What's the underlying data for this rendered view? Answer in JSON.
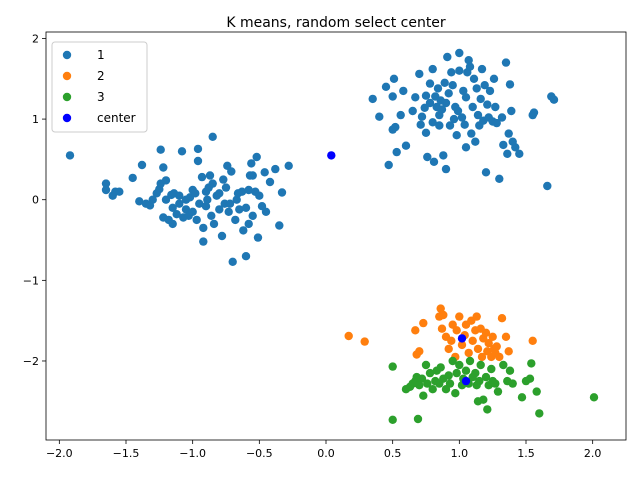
{
  "chart_data": {
    "type": "scatter",
    "title": "K means, random select center",
    "xlabel": "",
    "ylabel": "",
    "xlim": [
      -2.1,
      2.25
    ],
    "ylim": [
      -2.98,
      2.08
    ],
    "xticks": [
      -2.0,
      -1.5,
      -1.0,
      -0.5,
      0.0,
      0.5,
      1.0,
      1.5,
      2.0
    ],
    "yticks": [
      -2,
      -1,
      0,
      1,
      2
    ],
    "xtick_labels": [
      "−2.0",
      "−1.5",
      "−1.0",
      "−0.5",
      "0.0",
      "0.5",
      "1.0",
      "1.5",
      "2.0"
    ],
    "ytick_labels": [
      "−2",
      "−1",
      "0",
      "1",
      "2"
    ],
    "grid": false,
    "legend_position": "top-left",
    "series": [
      {
        "name": "1",
        "color": "#1f77b4",
        "points": [
          [
            -1.92,
            0.55
          ],
          [
            -1.65,
            0.2
          ],
          [
            -1.65,
            0.12
          ],
          [
            -1.6,
            0.05
          ],
          [
            -1.58,
            0.1
          ],
          [
            -1.55,
            0.1
          ],
          [
            -1.45,
            0.27
          ],
          [
            -1.4,
            -0.02
          ],
          [
            -1.38,
            0.43
          ],
          [
            -1.35,
            -0.05
          ],
          [
            -1.32,
            -0.07
          ],
          [
            -1.3,
            0.0
          ],
          [
            -1.27,
            0.08
          ],
          [
            -1.25,
            0.13
          ],
          [
            -1.24,
            0.2
          ],
          [
            -1.24,
            0.62
          ],
          [
            -1.22,
            -0.22
          ],
          [
            -1.22,
            0.4
          ],
          [
            -1.2,
            0.0
          ],
          [
            -1.2,
            0.24
          ],
          [
            -1.18,
            -0.25
          ],
          [
            -1.16,
            0.06
          ],
          [
            -1.15,
            -0.1
          ],
          [
            -1.15,
            -0.3
          ],
          [
            -1.14,
            0.08
          ],
          [
            -1.12,
            -0.18
          ],
          [
            -1.1,
            -0.05
          ],
          [
            -1.1,
            0.05
          ],
          [
            -1.08,
            0.6
          ],
          [
            -1.07,
            -0.22
          ],
          [
            -1.05,
            0.0
          ],
          [
            -1.05,
            -0.12
          ],
          [
            -1.03,
            -0.2
          ],
          [
            -1.02,
            0.03
          ],
          [
            -1.0,
            -0.15
          ],
          [
            -1.0,
            0.12
          ],
          [
            -0.98,
            0.08
          ],
          [
            -0.97,
            -0.25
          ],
          [
            -0.96,
            0.48
          ],
          [
            -0.96,
            0.63
          ],
          [
            -0.95,
            -0.05
          ],
          [
            -0.93,
            0.28
          ],
          [
            -0.92,
            -0.35
          ],
          [
            -0.92,
            -0.52
          ],
          [
            -0.9,
            0.1
          ],
          [
            -0.9,
            -0.08
          ],
          [
            -0.89,
            0.0
          ],
          [
            -0.88,
            0.15
          ],
          [
            -0.87,
            0.3
          ],
          [
            -0.86,
            -0.2
          ],
          [
            -0.85,
            0.78
          ],
          [
            -0.85,
            0.2
          ],
          [
            -0.84,
            -0.3
          ],
          [
            -0.82,
            0.05
          ],
          [
            -0.8,
            -0.12
          ],
          [
            -0.8,
            0.08
          ],
          [
            -0.78,
            -0.45
          ],
          [
            -0.77,
            0.25
          ],
          [
            -0.76,
            -0.05
          ],
          [
            -0.75,
            0.15
          ],
          [
            -0.74,
            0.42
          ],
          [
            -0.73,
            -0.15
          ],
          [
            -0.72,
            -0.05
          ],
          [
            -0.71,
            0.35
          ],
          [
            -0.7,
            -0.77
          ],
          [
            -0.68,
            -0.25
          ],
          [
            -0.67,
            0.0
          ],
          [
            -0.66,
            0.08
          ],
          [
            -0.65,
            -0.12
          ],
          [
            -0.63,
            0.1
          ],
          [
            -0.62,
            -0.38
          ],
          [
            -0.6,
            -0.7
          ],
          [
            -0.6,
            -0.1
          ],
          [
            -0.58,
            0.12
          ],
          [
            -0.58,
            -0.3
          ],
          [
            -0.57,
            0.3
          ],
          [
            -0.56,
            0.45
          ],
          [
            -0.55,
            0.3
          ],
          [
            -0.55,
            -0.2
          ],
          [
            -0.53,
            0.1
          ],
          [
            -0.52,
            0.53
          ],
          [
            -0.51,
            -0.47
          ],
          [
            -0.5,
            0.05
          ],
          [
            -0.48,
            -0.08
          ],
          [
            -0.46,
            0.34
          ],
          [
            -0.45,
            -0.15
          ],
          [
            -0.42,
            0.22
          ],
          [
            -0.38,
            0.38
          ],
          [
            -0.35,
            -0.32
          ],
          [
            -0.33,
            0.09
          ],
          [
            -0.28,
            0.42
          ],
          [
            0.35,
            1.25
          ],
          [
            0.4,
            1.03
          ],
          [
            0.45,
            1.4
          ],
          [
            0.47,
            0.43
          ],
          [
            0.5,
            0.87
          ],
          [
            0.5,
            1.28
          ],
          [
            0.51,
            1.5
          ],
          [
            0.52,
            0.9
          ],
          [
            0.53,
            0.59
          ],
          [
            0.56,
            1.05
          ],
          [
            0.58,
            1.35
          ],
          [
            0.6,
            0.67
          ],
          [
            0.65,
            1.1
          ],
          [
            0.67,
            1.27
          ],
          [
            0.7,
            1.56
          ],
          [
            0.71,
            0.93
          ],
          [
            0.72,
            1.03
          ],
          [
            0.74,
            1.14
          ],
          [
            0.75,
            0.83
          ],
          [
            0.75,
            1.29
          ],
          [
            0.76,
            0.53
          ],
          [
            0.78,
            1.2
          ],
          [
            0.78,
            1.44
          ],
          [
            0.8,
            0.96
          ],
          [
            0.8,
            1.62
          ],
          [
            0.81,
            0.47
          ],
          [
            0.82,
            1.28
          ],
          [
            0.83,
            1.15
          ],
          [
            0.84,
            1.38
          ],
          [
            0.85,
            1.05
          ],
          [
            0.85,
            0.92
          ],
          [
            0.86,
            1.23
          ],
          [
            0.87,
            1.12
          ],
          [
            0.88,
            0.55
          ],
          [
            0.89,
            1.45
          ],
          [
            0.9,
            1.2
          ],
          [
            0.9,
            0.38
          ],
          [
            0.91,
            1.77
          ],
          [
            0.92,
            1.32
          ],
          [
            0.93,
            0.92
          ],
          [
            0.94,
            1.58
          ],
          [
            0.95,
            1.42
          ],
          [
            0.96,
            1.0
          ],
          [
            0.97,
            1.15
          ],
          [
            0.98,
            0.8
          ],
          [
            0.99,
            1.1
          ],
          [
            1.0,
            1.82
          ],
          [
            1.0,
            1.6
          ],
          [
            1.02,
            1.02
          ],
          [
            1.03,
            1.35
          ],
          [
            1.04,
            0.93
          ],
          [
            1.05,
            1.27
          ],
          [
            1.05,
            0.65
          ],
          [
            1.06,
            1.58
          ],
          [
            1.07,
            1.73
          ],
          [
            1.08,
            1.65
          ],
          [
            1.09,
            0.82
          ],
          [
            1.1,
            1.15
          ],
          [
            1.11,
            1.5
          ],
          [
            1.12,
            0.72
          ],
          [
            1.13,
            1.38
          ],
          [
            1.14,
            1.05
          ],
          [
            1.15,
            0.92
          ],
          [
            1.16,
            1.25
          ],
          [
            1.17,
            1.62
          ],
          [
            1.18,
            0.98
          ],
          [
            1.19,
            1.42
          ],
          [
            1.2,
            0.34
          ],
          [
            1.21,
            1.18
          ],
          [
            1.22,
            1.02
          ],
          [
            1.23,
            1.35
          ],
          [
            1.25,
            0.97
          ],
          [
            1.26,
            1.5
          ],
          [
            1.27,
            1.15
          ],
          [
            1.28,
            0.95
          ],
          [
            1.3,
            0.26
          ],
          [
            1.32,
            1.02
          ],
          [
            1.33,
            0.68
          ],
          [
            1.35,
            1.7
          ],
          [
            1.36,
            0.57
          ],
          [
            1.37,
            0.82
          ],
          [
            1.38,
            1.43
          ],
          [
            1.39,
            1.1
          ],
          [
            1.4,
            0.72
          ],
          [
            1.42,
            0.65
          ],
          [
            1.45,
            0.57
          ],
          [
            1.55,
            1.05
          ],
          [
            1.56,
            1.08
          ],
          [
            1.66,
            0.17
          ],
          [
            1.69,
            1.28
          ],
          [
            1.71,
            1.24
          ]
        ]
      },
      {
        "name": "2",
        "color": "#ff7f0e",
        "points": [
          [
            0.17,
            -1.69
          ],
          [
            0.29,
            -1.76
          ],
          [
            0.67,
            -1.62
          ],
          [
            0.68,
            -1.92
          ],
          [
            0.7,
            -1.88
          ],
          [
            0.73,
            -1.53
          ],
          [
            0.85,
            -1.45
          ],
          [
            0.86,
            -1.35
          ],
          [
            0.87,
            -1.6
          ],
          [
            0.88,
            -1.43
          ],
          [
            0.9,
            -1.7
          ],
          [
            0.92,
            -1.85
          ],
          [
            0.94,
            -1.75
          ],
          [
            0.95,
            -1.55
          ],
          [
            0.97,
            -1.95
          ],
          [
            0.98,
            -1.62
          ],
          [
            1.0,
            -1.45
          ],
          [
            1.02,
            -1.8
          ],
          [
            1.04,
            -1.68
          ],
          [
            1.05,
            -1.55
          ],
          [
            1.07,
            -1.9
          ],
          [
            1.09,
            -1.5
          ],
          [
            1.1,
            -1.75
          ],
          [
            1.12,
            -1.62
          ],
          [
            1.13,
            -1.45
          ],
          [
            1.14,
            -1.85
          ],
          [
            1.16,
            -1.6
          ],
          [
            1.17,
            -1.95
          ],
          [
            1.18,
            -1.72
          ],
          [
            1.2,
            -1.65
          ],
          [
            1.21,
            -1.88
          ],
          [
            1.22,
            -1.78
          ],
          [
            1.24,
            -1.95
          ],
          [
            1.25,
            -1.7
          ],
          [
            1.26,
            -1.85
          ],
          [
            1.27,
            -1.9
          ],
          [
            1.28,
            -1.82
          ],
          [
            1.3,
            -1.95
          ],
          [
            1.32,
            -1.47
          ],
          [
            1.35,
            -1.7
          ],
          [
            1.37,
            -1.88
          ],
          [
            1.55,
            -1.75
          ]
        ]
      },
      {
        "name": "3",
        "color": "#2ca02c",
        "points": [
          [
            0.5,
            -2.07
          ],
          [
            0.5,
            -2.73
          ],
          [
            0.6,
            -2.35
          ],
          [
            0.63,
            -2.32
          ],
          [
            0.65,
            -2.28
          ],
          [
            0.67,
            -2.25
          ],
          [
            0.68,
            -2.2
          ],
          [
            0.69,
            -2.72
          ],
          [
            0.7,
            -2.3
          ],
          [
            0.72,
            -2.22
          ],
          [
            0.73,
            -2.43
          ],
          [
            0.75,
            -2.05
          ],
          [
            0.76,
            -2.28
          ],
          [
            0.78,
            -2.15
          ],
          [
            0.8,
            -2.35
          ],
          [
            0.82,
            -2.25
          ],
          [
            0.83,
            -2.12
          ],
          [
            0.85,
            -2.28
          ],
          [
            0.86,
            -2.08
          ],
          [
            0.88,
            -2.22
          ],
          [
            0.9,
            -2.35
          ],
          [
            0.92,
            -2.18
          ],
          [
            0.93,
            -2.28
          ],
          [
            0.95,
            -2.0
          ],
          [
            0.97,
            -2.4
          ],
          [
            0.98,
            -2.15
          ],
          [
            1.0,
            -2.05
          ],
          [
            1.02,
            -2.3
          ],
          [
            1.03,
            -2.22
          ],
          [
            1.05,
            -2.12
          ],
          [
            1.07,
            -2.28
          ],
          [
            1.08,
            -2.0
          ],
          [
            1.1,
            -2.2
          ],
          [
            1.12,
            -2.15
          ],
          [
            1.13,
            -2.3
          ],
          [
            1.14,
            -2.5
          ],
          [
            1.15,
            -2.25
          ],
          [
            1.16,
            -2.05
          ],
          [
            1.18,
            -2.48
          ],
          [
            1.2,
            -2.2
          ],
          [
            1.21,
            -2.6
          ],
          [
            1.22,
            -2.3
          ],
          [
            1.24,
            -2.1
          ],
          [
            1.25,
            -2.25
          ],
          [
            1.27,
            -2.28
          ],
          [
            1.29,
            -2.38
          ],
          [
            1.33,
            -2.05
          ],
          [
            1.36,
            -2.25
          ],
          [
            1.38,
            -2.12
          ],
          [
            1.4,
            -2.28
          ],
          [
            1.47,
            -2.45
          ],
          [
            1.5,
            -2.25
          ],
          [
            1.53,
            -2.22
          ],
          [
            1.54,
            -2.03
          ],
          [
            1.58,
            -2.38
          ],
          [
            1.6,
            -2.65
          ],
          [
            2.01,
            -2.45
          ]
        ]
      },
      {
        "name": "center",
        "color": "#0000ff",
        "points": [
          [
            0.04,
            0.55
          ],
          [
            1.02,
            -1.72
          ],
          [
            1.05,
            -2.25
          ]
        ]
      }
    ]
  }
}
